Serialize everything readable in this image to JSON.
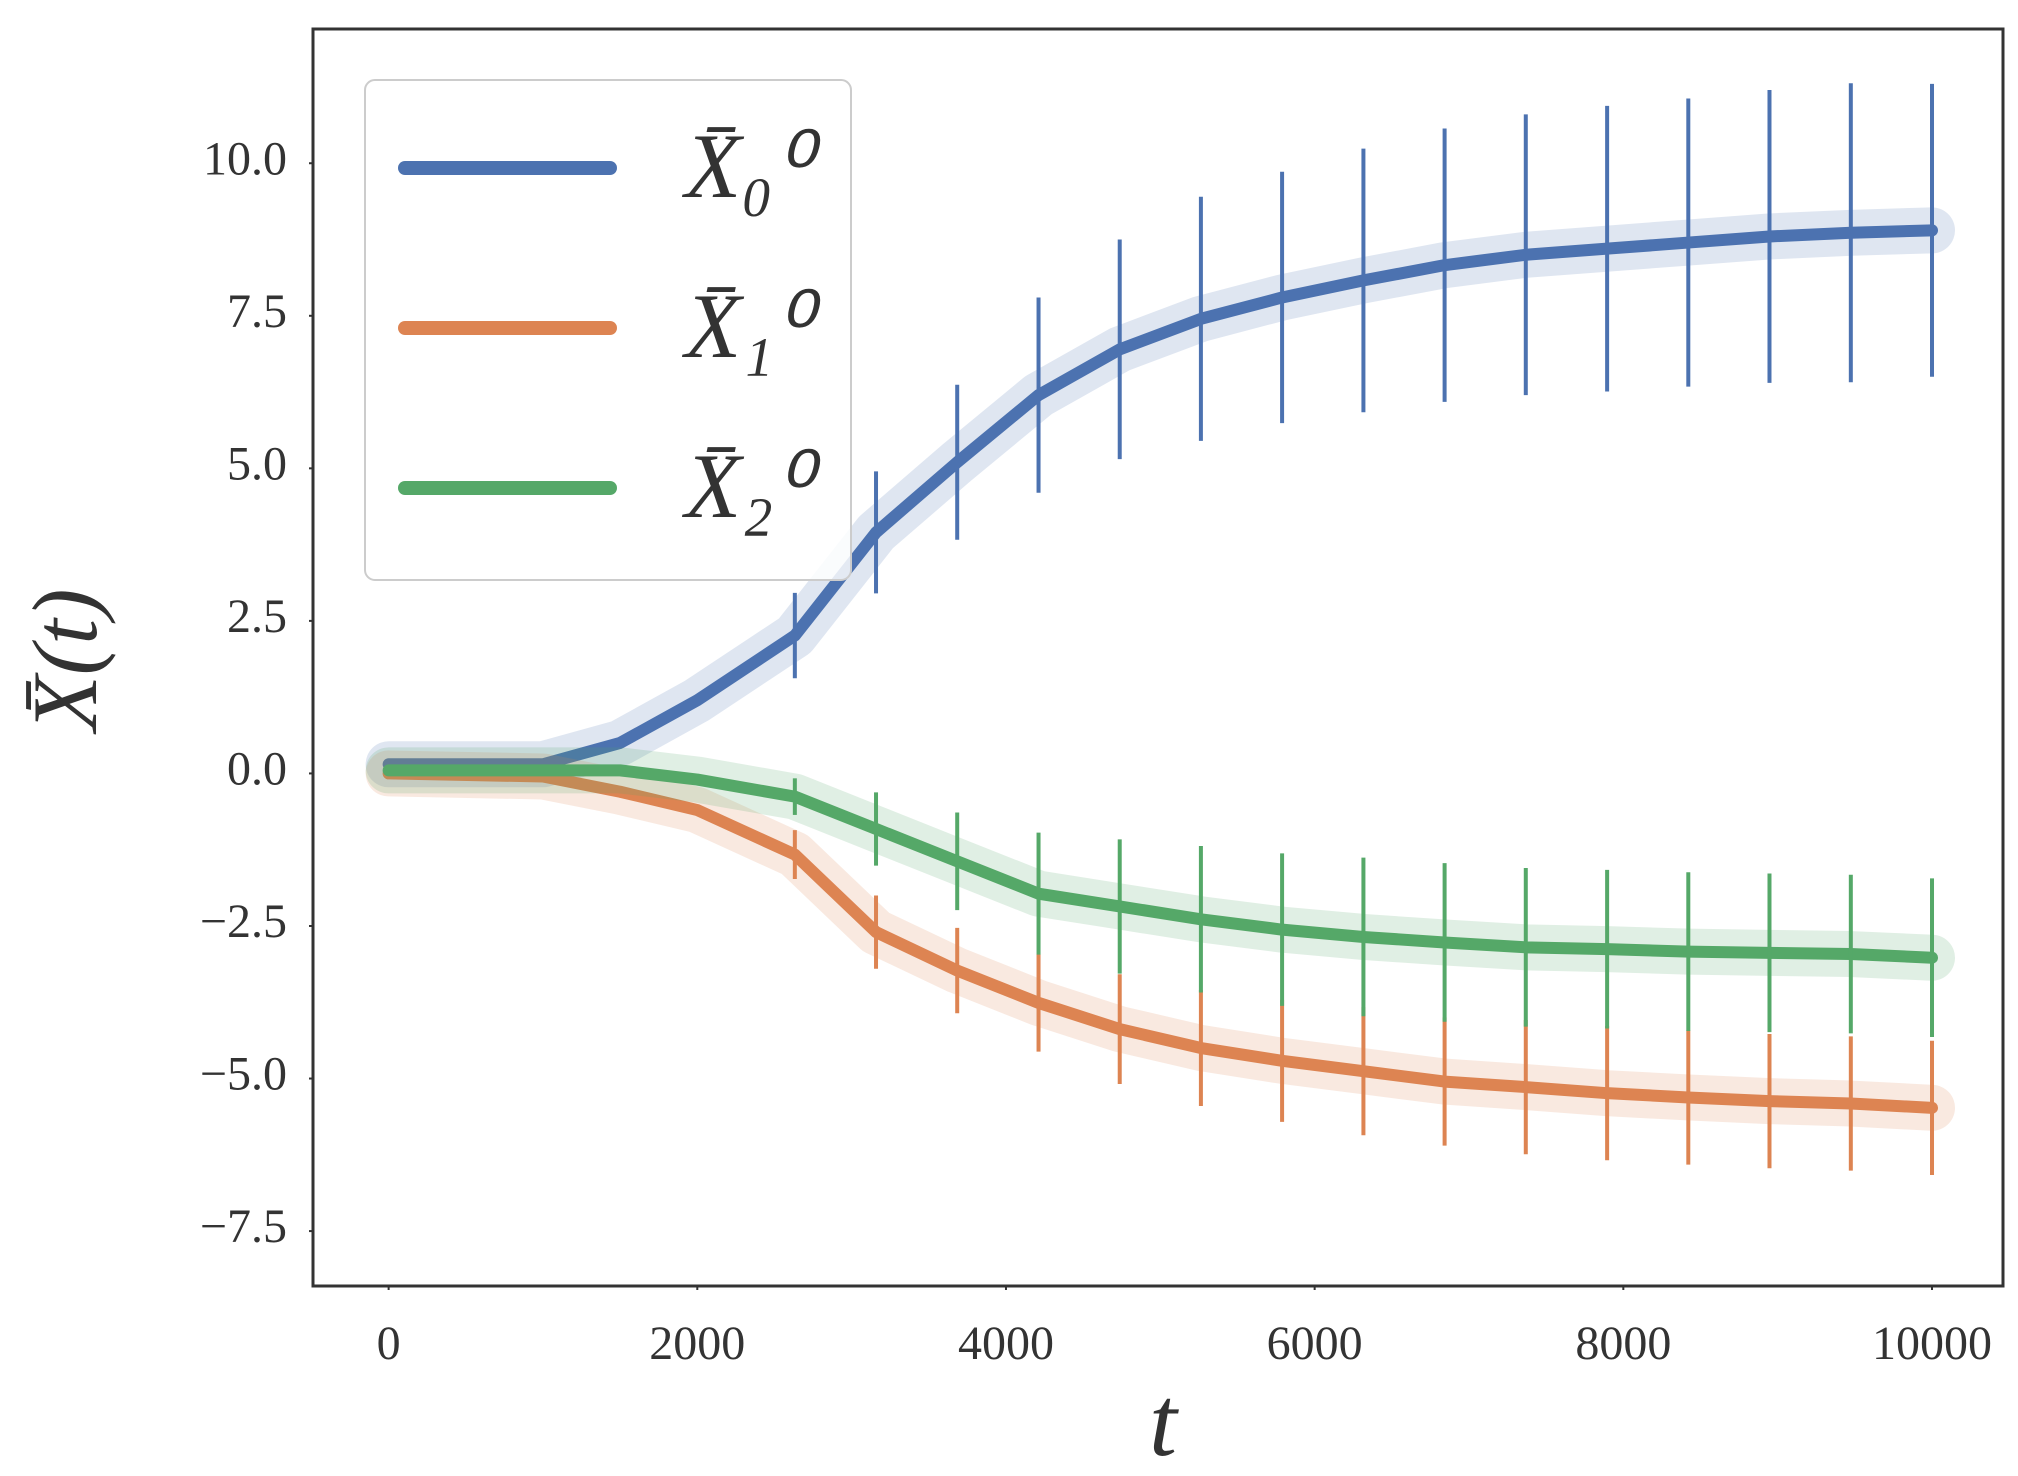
{
  "chart_data": {
    "type": "line",
    "xlabel": "t",
    "ylabel": "X̄(t)",
    "x": [
      0,
      1000,
      1500,
      2000,
      2632,
      3158,
      3684,
      4211,
      4737,
      5263,
      5789,
      6316,
      6842,
      7368,
      7895,
      8421,
      8947,
      9474,
      10000
    ],
    "series": [
      {
        "name": "X̄₀⁰",
        "color": "#4c72b0",
        "values": [
          0.15,
          0.15,
          0.5,
          1.2,
          2.26,
          3.95,
          5.1,
          6.2,
          6.95,
          7.45,
          7.8,
          8.08,
          8.33,
          8.5,
          8.6,
          8.7,
          8.8,
          8.86,
          8.9
        ],
        "errors": [
          null,
          null,
          null,
          null,
          0.7,
          1.0,
          1.27,
          1.6,
          1.8,
          2.0,
          2.06,
          2.16,
          2.24,
          2.3,
          2.34,
          2.36,
          2.4,
          2.45,
          2.4
        ]
      },
      {
        "name": "X̄₁⁰",
        "color": "#dd8452",
        "values": [
          0,
          -0.05,
          -0.3,
          -0.6,
          -1.33,
          -2.6,
          -3.23,
          -3.76,
          -4.19,
          -4.5,
          -4.71,
          -4.88,
          -5.05,
          -5.14,
          -5.24,
          -5.31,
          -5.37,
          -5.41,
          -5.48
        ],
        "errors": [
          null,
          null,
          null,
          null,
          0.4,
          0.6,
          0.7,
          0.8,
          0.9,
          0.95,
          1.0,
          1.05,
          1.05,
          1.1,
          1.1,
          1.1,
          1.1,
          1.1,
          1.1
        ]
      },
      {
        "name": "X̄₂⁰",
        "color": "#55a868",
        "values": [
          0.05,
          0.05,
          0.05,
          -0.1,
          -0.38,
          -0.91,
          -1.44,
          -1.97,
          -2.18,
          -2.39,
          -2.56,
          -2.68,
          -2.77,
          -2.85,
          -2.88,
          -2.92,
          -2.94,
          -2.96,
          -3.02
        ],
        "errors": [
          null,
          null,
          null,
          null,
          0.3,
          0.6,
          0.8,
          1.0,
          1.1,
          1.2,
          1.25,
          1.3,
          1.3,
          1.3,
          1.3,
          1.3,
          1.3,
          1.3,
          1.3
        ]
      }
    ],
    "xlim": [
      -490,
      10460
    ],
    "ylim": [
      -8.4,
      12.2
    ],
    "xticks": [
      0,
      2000,
      4000,
      6000,
      8000,
      10000
    ],
    "yticks": [
      {
        "value": -7.5,
        "label": "−7.5"
      },
      {
        "value": -5,
        "label": "−5.0"
      },
      {
        "value": -2.5,
        "label": "−2.5"
      },
      {
        "value": 0,
        "label": "0.0"
      },
      {
        "value": 2.5,
        "label": "2.5"
      },
      {
        "value": 5,
        "label": "5.0"
      },
      {
        "value": 7.5,
        "label": "7.5"
      },
      {
        "value": 10,
        "label": "10.0"
      }
    ],
    "grid": false,
    "legend": "upper left"
  }
}
